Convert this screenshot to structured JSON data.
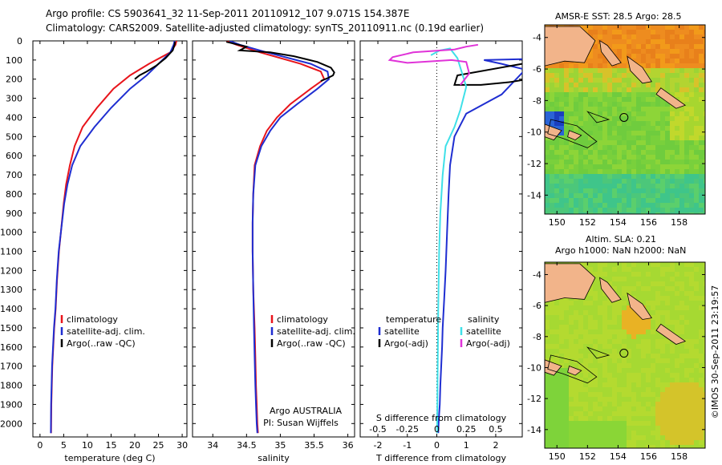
{
  "header": {
    "line1": "Argo profile: CS 5903641_32 11-Sep-2011 20110912_107 9.071S 154.387E",
    "line2": "Climatology: CARS2009. Satellite-adjusted climatology: synTS_20110911.nc (0.19d earlier)"
  },
  "depth_axis": {
    "ticks": [
      0,
      100,
      200,
      300,
      400,
      500,
      600,
      700,
      800,
      900,
      1000,
      1100,
      1200,
      1300,
      1400,
      1500,
      1600,
      1700,
      1800,
      1900,
      2000
    ],
    "range": [
      0,
      2070
    ]
  },
  "legend": {
    "climatology": "climatology",
    "satellite_clim": "satellite-adj. clim.",
    "argo_raw": "Argo(..raw -QC)",
    "temperature": "temperature",
    "salinity": "salinity",
    "satellite": "satellite",
    "argo_adj": "Argo(-adj)"
  },
  "colors": {
    "climatology": "#e8141b",
    "satellite": "#1f2ed1",
    "argo": "#000000",
    "sal_satellite": "#3fe0e8",
    "sal_argo": "#e033d8"
  },
  "annotations": {
    "argo_country": "Argo AUSTRALIA",
    "pi": "PI: Susan Wijffels",
    "copyright": "©IMOS 30-Sep-2011 23:19:57"
  },
  "chart_data": [
    {
      "type": "line",
      "name": "temperature",
      "xlabel": "temperature (deg C)",
      "ylabel": "",
      "xlim": [
        -1.5,
        31
      ],
      "xticks": [
        0,
        5,
        10,
        15,
        20,
        25,
        30
      ],
      "series": [
        {
          "name": "climatology",
          "x": [
            28.8,
            28.6,
            27.5,
            23,
            19,
            15.5,
            12,
            9,
            7.3,
            6.3,
            5.5,
            5,
            4.4,
            4.0,
            3.6,
            3.3,
            3.0,
            2.8,
            2.6,
            2.5,
            2.4,
            2.35
          ],
          "y": [
            0,
            20,
            60,
            120,
            180,
            250,
            350,
            450,
            550,
            650,
            750,
            850,
            1000,
            1100,
            1250,
            1400,
            1500,
            1600,
            1700,
            1800,
            1900,
            2050
          ]
        },
        {
          "name": "satellite-adj. clim.",
          "x": [
            28.4,
            28.2,
            27.5,
            25,
            22.5,
            19,
            15,
            11.5,
            8.5,
            6.8,
            5.8,
            5.1,
            4.4,
            3.95,
            3.55,
            3.25,
            2.95,
            2.75,
            2.55,
            2.45,
            2.35,
            2.3
          ],
          "y": [
            0,
            20,
            60,
            120,
            180,
            250,
            350,
            450,
            550,
            650,
            750,
            850,
            1000,
            1100,
            1250,
            1400,
            1500,
            1600,
            1700,
            1800,
            1900,
            2050
          ]
        },
        {
          "name": "Argo(..raw -QC)",
          "x": [
            28.5,
            28.4,
            28,
            26.5,
            24.5,
            22.5,
            21,
            20
          ],
          "y": [
            5,
            20,
            50,
            90,
            130,
            160,
            180,
            200
          ]
        }
      ]
    },
    {
      "type": "line",
      "name": "salinity",
      "xlabel": "salinity",
      "ylabel": "",
      "xlim": [
        33.7,
        36.1
      ],
      "xticks": [
        34,
        34.5,
        35,
        35.5,
        36
      ],
      "tick_labels": [
        "34",
        "34.5",
        "35",
        "35.5",
        "36"
      ],
      "series": [
        {
          "name": "climatology",
          "x": [
            34.2,
            34.35,
            34.7,
            35.3,
            35.6,
            35.65,
            35.45,
            35.15,
            34.95,
            34.8,
            34.7,
            34.62,
            34.6,
            34.59,
            34.59,
            34.6,
            34.62,
            34.63,
            34.64,
            34.65,
            34.66,
            34.67
          ],
          "y": [
            0,
            20,
            60,
            120,
            160,
            200,
            250,
            330,
            400,
            470,
            550,
            650,
            800,
            950,
            1100,
            1300,
            1500,
            1650,
            1800,
            1900,
            2000,
            2050
          ]
        },
        {
          "name": "satellite-adj. clim.",
          "x": [
            34.25,
            34.4,
            34.8,
            35.45,
            35.7,
            35.72,
            35.55,
            35.25,
            35.0,
            34.85,
            34.72,
            34.63,
            34.6,
            34.59,
            34.59,
            34.6,
            34.61,
            34.62,
            34.63,
            34.64,
            34.65,
            34.66
          ],
          "y": [
            0,
            20,
            60,
            120,
            160,
            200,
            250,
            330,
            400,
            470,
            550,
            650,
            800,
            950,
            1100,
            1300,
            1500,
            1650,
            1800,
            1900,
            2000,
            2050
          ]
        },
        {
          "name": "Argo(..raw -QC)",
          "x": [
            34.2,
            34.5,
            34.4,
            34.85,
            35.2,
            35.55,
            35.75,
            35.8,
            35.78,
            35.7,
            35.6
          ],
          "y": [
            5,
            30,
            50,
            60,
            80,
            110,
            140,
            165,
            180,
            195,
            210
          ]
        }
      ]
    },
    {
      "type": "line",
      "name": "difference",
      "xlabel": "T difference from climatology",
      "x2label": "S difference from climatology",
      "xlim": [
        -2.6,
        2.9
      ],
      "xticks": [
        -2,
        -1,
        0,
        1,
        2
      ],
      "x2ticks": [
        -0.5,
        -0.25,
        0,
        0.25,
        0.5
      ],
      "series": [
        {
          "name": "temperature satellite",
          "x": [
            2.9,
            1.6,
            2.2,
            3.0,
            2.2,
            1.0,
            0.6,
            0.45,
            0.4,
            0.35,
            0.3,
            0.25,
            0.2,
            0.18,
            0.15,
            0.12,
            0.1,
            0.08,
            0.06,
            0.05
          ],
          "y": [
            95,
            100,
            120,
            150,
            280,
            380,
            500,
            650,
            800,
            1000,
            1200,
            1350,
            1500,
            1600,
            1700,
            1800,
            1900,
            1950,
            2000,
            2050
          ]
        },
        {
          "name": "temperature Argo(-adj)",
          "x": [
            2.9,
            0.7,
            0.6,
            1.5,
            2.5,
            2.9
          ],
          "y": [
            120,
            180,
            230,
            230,
            215,
            205
          ]
        },
        {
          "name": "salinity satellite",
          "x": [
            -0.2,
            0.1,
            0.45,
            0.7,
            1.0,
            0.8,
            0.6,
            0.3,
            0.2,
            0.12,
            0.08,
            0.05,
            0.03,
            0.02,
            0.01
          ],
          "y": [
            75,
            50,
            40,
            90,
            240,
            360,
            450,
            550,
            700,
            900,
            1100,
            1400,
            1700,
            1900,
            2050
          ]
        },
        {
          "name": "salinity Argo(-adj)",
          "x": [
            1.4,
            1.0,
            0.6,
            -0.8,
            -1.5,
            -1.6,
            -1.0,
            0.5,
            1.0,
            1.1,
            0.8
          ],
          "y": [
            20,
            30,
            45,
            60,
            85,
            100,
            115,
            100,
            110,
            170,
            230
          ]
        }
      ]
    },
    {
      "type": "heatmap",
      "name": "sst_map",
      "title": "AMSR-E SST: 28.5 Argo: 28.5",
      "xlim": [
        149.2,
        159.7
      ],
      "ylim": [
        -15.2,
        -3.2
      ],
      "xticks": [
        150,
        152,
        154,
        156,
        158
      ],
      "yticks": [
        -4,
        -6,
        -8,
        -10,
        -12,
        -14
      ],
      "argo_position": {
        "lon": 154.387,
        "lat": -9.071
      }
    },
    {
      "type": "heatmap",
      "name": "sla_map",
      "title": "Altim. SLA: 0.21",
      "subtitle": "Argo h1000: NaN h2000: NaN",
      "xlim": [
        149.2,
        159.7
      ],
      "ylim": [
        -15.2,
        -3.2
      ],
      "xticks": [
        150,
        152,
        154,
        156,
        158
      ],
      "yticks": [
        -4,
        -6,
        -8,
        -10,
        -12,
        -14
      ],
      "argo_position": {
        "lon": 154.387,
        "lat": -9.071
      }
    }
  ]
}
